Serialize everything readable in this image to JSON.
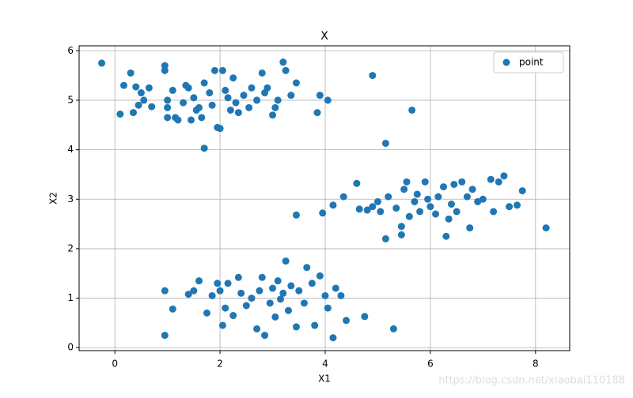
{
  "chart_data": {
    "type": "scatter",
    "title": "X",
    "x_label": "X1",
    "y_label": "X2",
    "xlim": [
      -0.68,
      8.65
    ],
    "ylim": [
      -0.06,
      6.1
    ],
    "xticks": [
      0,
      2,
      4,
      6,
      8
    ],
    "yticks": [
      0,
      1,
      2,
      3,
      4,
      5,
      6
    ],
    "grid": true,
    "legend": "upper right",
    "watermark": "https://blog.csdn.net/xiaobai110188",
    "series": [
      {
        "name": "point",
        "color": "#1f77b4",
        "x": [
          -0.25,
          0.1,
          0.17,
          0.3,
          0.35,
          0.4,
          0.45,
          0.5,
          0.55,
          0.65,
          0.7,
          0.95,
          0.95,
          1.0,
          1.0,
          1.0,
          1.1,
          1.15,
          1.2,
          1.3,
          1.35,
          1.4,
          1.45,
          1.5,
          1.55,
          1.6,
          1.65,
          1.7,
          1.7,
          1.8,
          1.85,
          1.9,
          1.95,
          2.0,
          2.05,
          2.1,
          2.15,
          2.2,
          2.25,
          2.3,
          2.35,
          2.45,
          2.55,
          2.6,
          2.7,
          2.8,
          2.85,
          2.9,
          3.0,
          3.05,
          3.1,
          3.2,
          3.25,
          3.35,
          3.45,
          3.85,
          3.9,
          4.05,
          4.9,
          5.65,
          5.15,
          3.45,
          3.95,
          4.15,
          4.35,
          4.6,
          4.65,
          4.8,
          4.9,
          5.0,
          5.05,
          5.15,
          5.2,
          5.35,
          5.45,
          5.45,
          5.5,
          5.55,
          5.6,
          5.7,
          5.75,
          5.8,
          5.9,
          5.95,
          6.0,
          6.1,
          6.15,
          6.25,
          6.3,
          6.35,
          6.4,
          6.45,
          6.5,
          6.6,
          6.7,
          6.75,
          6.8,
          6.9,
          7.0,
          7.15,
          7.2,
          7.3,
          7.4,
          7.5,
          7.65,
          7.75,
          8.2,
          0.95,
          0.95,
          1.1,
          1.4,
          1.5,
          1.6,
          1.75,
          1.85,
          1.95,
          2.0,
          2.05,
          2.1,
          2.15,
          2.25,
          2.35,
          2.4,
          2.5,
          2.6,
          2.7,
          2.75,
          2.8,
          2.85,
          2.95,
          3.0,
          3.05,
          3.1,
          3.15,
          3.2,
          3.25,
          3.3,
          3.35,
          3.45,
          3.5,
          3.6,
          3.65,
          3.75,
          3.8,
          3.9,
          4.0,
          4.05,
          4.15,
          4.2,
          4.3,
          4.4,
          4.75,
          5.3
        ],
        "values": [
          5.75,
          4.72,
          5.3,
          5.55,
          4.75,
          5.27,
          4.9,
          5.15,
          5.0,
          5.25,
          4.87,
          5.7,
          5.6,
          5.0,
          4.85,
          4.65,
          5.2,
          4.65,
          4.6,
          4.95,
          5.3,
          5.25,
          4.6,
          5.05,
          4.8,
          4.85,
          4.65,
          5.35,
          4.03,
          5.15,
          4.9,
          5.6,
          4.45,
          4.43,
          5.6,
          5.2,
          5.05,
          4.8,
          5.45,
          4.95,
          4.75,
          5.1,
          4.85,
          5.25,
          5.0,
          5.55,
          5.15,
          5.25,
          4.7,
          4.85,
          5.0,
          5.77,
          5.6,
          5.1,
          5.35,
          4.75,
          5.1,
          5.0,
          5.5,
          4.8,
          4.13,
          2.68,
          2.72,
          2.88,
          3.05,
          3.32,
          2.8,
          2.78,
          2.85,
          2.95,
          2.75,
          2.2,
          3.05,
          2.82,
          2.28,
          2.45,
          3.2,
          3.35,
          2.65,
          2.95,
          3.1,
          2.75,
          3.35,
          3.0,
          2.85,
          2.7,
          3.05,
          3.25,
          2.25,
          2.6,
          2.9,
          3.3,
          2.75,
          3.35,
          3.05,
          2.42,
          3.2,
          2.95,
          3.0,
          3.4,
          2.75,
          3.35,
          3.47,
          2.85,
          2.88,
          3.17,
          2.42,
          0.25,
          1.15,
          0.78,
          1.08,
          1.15,
          1.35,
          0.7,
          1.05,
          1.3,
          1.15,
          0.45,
          0.8,
          1.3,
          0.65,
          1.42,
          1.1,
          0.85,
          1.0,
          0.38,
          1.15,
          1.42,
          0.25,
          0.9,
          1.2,
          0.62,
          1.35,
          0.98,
          1.1,
          1.75,
          0.75,
          1.25,
          0.42,
          1.15,
          0.9,
          1.62,
          1.3,
          0.45,
          1.45,
          1.05,
          0.8,
          0.2,
          1.2,
          1.05,
          0.55,
          0.63,
          0.38
        ]
      }
    ]
  }
}
